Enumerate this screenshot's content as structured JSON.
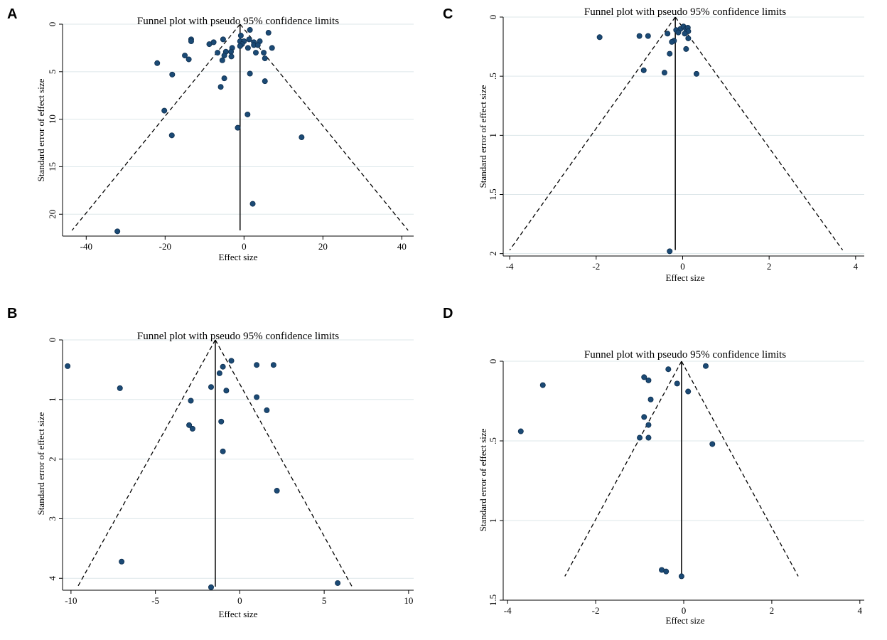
{
  "chart_data": [
    {
      "panel_label": "A",
      "type": "scatter",
      "title": "Funnel plot with pseudo 95% confidence limits",
      "xlabel": "Effect size",
      "ylabel": "Standard error of effect size",
      "xlim": [
        -46,
        43
      ],
      "ylim": [
        0,
        22.3
      ],
      "y_reversed": true,
      "xticks": [
        -40,
        -20,
        0,
        20,
        40
      ],
      "xtick_labels": [
        "-40",
        "-20",
        "0",
        "20",
        "40"
      ],
      "yticks": [
        0,
        5,
        10,
        15,
        20
      ],
      "ytick_labels": [
        "0",
        "5",
        "10",
        "15",
        "20"
      ],
      "grid": "horizontal",
      "pooled_effect": -1,
      "funnel_lines": [
        {
          "x1": -1,
          "y1": 0,
          "x2": -43.6,
          "y2": 21.7
        },
        {
          "x1": -1,
          "y1": 0,
          "x2": 41.6,
          "y2": 21.7
        }
      ],
      "points": [
        {
          "x": 1.5,
          "y": 0.6
        },
        {
          "x": 6.2,
          "y": 0.9
        },
        {
          "x": -13.4,
          "y": 1.6
        },
        {
          "x": -13.4,
          "y": 1.8
        },
        {
          "x": -8.8,
          "y": 2.1
        },
        {
          "x": -7.7,
          "y": 1.9
        },
        {
          "x": -5.3,
          "y": 1.6
        },
        {
          "x": -0.8,
          "y": 1.2
        },
        {
          "x": -1,
          "y": 1.8
        },
        {
          "x": 0,
          "y": 1.8
        },
        {
          "x": 1.3,
          "y": 1.6
        },
        {
          "x": 2.5,
          "y": 1.9
        },
        {
          "x": 4,
          "y": 1.8
        },
        {
          "x": 2.5,
          "y": 2.2
        },
        {
          "x": -0.5,
          "y": 2.1
        },
        {
          "x": -1,
          "y": 2.3
        },
        {
          "x": -3,
          "y": 2.5
        },
        {
          "x": 1,
          "y": 2.5
        },
        {
          "x": 3.5,
          "y": 2.2
        },
        {
          "x": 7.1,
          "y": 2.5
        },
        {
          "x": -3.3,
          "y": 2.9
        },
        {
          "x": -4.6,
          "y": 2.9
        },
        {
          "x": -6.7,
          "y": 3
        },
        {
          "x": 5,
          "y": 3
        },
        {
          "x": 3,
          "y": 3
        },
        {
          "x": -15,
          "y": 3.3
        },
        {
          "x": -14,
          "y": 3.7
        },
        {
          "x": -5,
          "y": 3.3
        },
        {
          "x": -3.2,
          "y": 3.4
        },
        {
          "x": -5.5,
          "y": 3.8
        },
        {
          "x": 5.3,
          "y": 3.6
        },
        {
          "x": -22,
          "y": 4.1
        },
        {
          "x": -18.2,
          "y": 5.3
        },
        {
          "x": -5,
          "y": 5.7
        },
        {
          "x": 1.5,
          "y": 5.2
        },
        {
          "x": 5.3,
          "y": 6
        },
        {
          "x": -5.9,
          "y": 6.6
        },
        {
          "x": -20.2,
          "y": 9.1
        },
        {
          "x": 0.9,
          "y": 9.5
        },
        {
          "x": -1.6,
          "y": 10.9
        },
        {
          "x": -18.3,
          "y": 11.7
        },
        {
          "x": 14.6,
          "y": 11.9
        },
        {
          "x": 2.2,
          "y": 18.9
        },
        {
          "x": -32.1,
          "y": 21.8
        }
      ]
    },
    {
      "panel_label": "B",
      "type": "scatter",
      "title": "Funnel plot with pseudo 95% confidence limits",
      "xlabel": "Effect size",
      "ylabel": "Standard error of effect size",
      "xlim": [
        -10.5,
        10.3
      ],
      "ylim": [
        0,
        4.2
      ],
      "y_reversed": true,
      "xticks": [
        -10,
        -5,
        0,
        5,
        10
      ],
      "xtick_labels": [
        "-10",
        "-5",
        "0",
        "5",
        "10"
      ],
      "yticks": [
        0,
        1,
        2,
        3,
        4
      ],
      "ytick_labels": [
        "0",
        "1",
        "2",
        "3",
        "4"
      ],
      "grid": "horizontal",
      "pooled_effect": -1.45,
      "funnel_lines": [
        {
          "x1": -1.45,
          "y1": 0,
          "x2": -9.6,
          "y2": 4.14
        },
        {
          "x1": -1.45,
          "y1": 0,
          "x2": 6.65,
          "y2": 4.14
        }
      ],
      "points": [
        {
          "x": -10.2,
          "y": 0.44
        },
        {
          "x": -7.1,
          "y": 0.81
        },
        {
          "x": -0.5,
          "y": 0.35
        },
        {
          "x": -1,
          "y": 0.45
        },
        {
          "x": -1.2,
          "y": 0.56
        },
        {
          "x": 1,
          "y": 0.42
        },
        {
          "x": 2,
          "y": 0.42
        },
        {
          "x": -1.7,
          "y": 0.79
        },
        {
          "x": -0.8,
          "y": 0.85
        },
        {
          "x": 1,
          "y": 0.96
        },
        {
          "x": -2.9,
          "y": 1.02
        },
        {
          "x": 1.6,
          "y": 1.18
        },
        {
          "x": -3,
          "y": 1.43
        },
        {
          "x": -2.8,
          "y": 1.49
        },
        {
          "x": -1.1,
          "y": 1.37
        },
        {
          "x": -1,
          "y": 1.87
        },
        {
          "x": 2.2,
          "y": 2.53
        },
        {
          "x": -7,
          "y": 3.72
        },
        {
          "x": -1.7,
          "y": 4.15
        },
        {
          "x": 5.8,
          "y": 4.08
        }
      ]
    },
    {
      "panel_label": "C",
      "type": "scatter",
      "title": "Funnel plot with pseudo 95% confidence limits",
      "xlabel": "Effect size",
      "ylabel": "Standard error of effect size",
      "xlim": [
        -4.15,
        4.2
      ],
      "ylim": [
        0,
        2.02
      ],
      "y_reversed": true,
      "xticks": [
        -4,
        -2,
        0,
        2,
        4
      ],
      "xtick_labels": [
        "-4",
        "-2",
        "0",
        "2",
        "4"
      ],
      "yticks": [
        0,
        0.5,
        1,
        1.5,
        2
      ],
      "ytick_labels": [
        "0",
        ".5",
        "1",
        "1.5",
        "2"
      ],
      "grid": "horizontal",
      "pooled_effect": -0.17,
      "funnel_lines": [
        {
          "x1": -0.17,
          "y1": 0,
          "x2": -4.0,
          "y2": 1.97
        },
        {
          "x1": -0.17,
          "y1": 0,
          "x2": 3.7,
          "y2": 1.97
        }
      ],
      "points": [
        {
          "x": -1.92,
          "y": 0.17
        },
        {
          "x": -1.0,
          "y": 0.16
        },
        {
          "x": -0.8,
          "y": 0.16
        },
        {
          "x": -0.35,
          "y": 0.14
        },
        {
          "x": -0.15,
          "y": 0.11
        },
        {
          "x": -0.05,
          "y": 0.1
        },
        {
          "x": 0.02,
          "y": 0.08
        },
        {
          "x": 0.08,
          "y": 0.1
        },
        {
          "x": 0.12,
          "y": 0.09
        },
        {
          "x": 0.13,
          "y": 0.12
        },
        {
          "x": 0.05,
          "y": 0.14
        },
        {
          "x": -0.1,
          "y": 0.13
        },
        {
          "x": -0.2,
          "y": 0.2
        },
        {
          "x": -0.25,
          "y": 0.21
        },
        {
          "x": 0.13,
          "y": 0.18
        },
        {
          "x": 0.08,
          "y": 0.27
        },
        {
          "x": -0.3,
          "y": 0.31
        },
        {
          "x": -0.9,
          "y": 0.45
        },
        {
          "x": -0.42,
          "y": 0.47
        },
        {
          "x": 0.32,
          "y": 0.48
        },
        {
          "x": -0.3,
          "y": 1.98
        }
      ]
    },
    {
      "panel_label": "D",
      "type": "scatter",
      "title": "Funnel plot with pseudo 95% confidence limits",
      "xlabel": "Effect size",
      "ylabel": "Standard error of effect size",
      "xlim": [
        -4.1,
        4.1
      ],
      "ylim": [
        0,
        1.5
      ],
      "y_reversed": true,
      "xticks": [
        -4,
        -2,
        0,
        2,
        4
      ],
      "xtick_labels": [
        "-4",
        "-2",
        "0",
        "2",
        "4"
      ],
      "yticks": [
        0,
        0.5,
        1,
        1.5
      ],
      "ytick_labels": [
        "0",
        ".5",
        "1",
        "1.5"
      ],
      "grid": "horizontal",
      "pooled_effect": -0.05,
      "funnel_lines": [
        {
          "x1": -0.05,
          "y1": 0,
          "x2": -2.7,
          "y2": 1.35
        },
        {
          "x1": -0.05,
          "y1": 0,
          "x2": 2.6,
          "y2": 1.35
        }
      ],
      "points": [
        {
          "x": -0.35,
          "y": 0.05
        },
        {
          "x": 0.5,
          "y": 0.03
        },
        {
          "x": -3.2,
          "y": 0.15
        },
        {
          "x": -0.9,
          "y": 0.1
        },
        {
          "x": -0.8,
          "y": 0.12
        },
        {
          "x": -0.15,
          "y": 0.14
        },
        {
          "x": 0.1,
          "y": 0.19
        },
        {
          "x": -0.75,
          "y": 0.24
        },
        {
          "x": -0.9,
          "y": 0.35
        },
        {
          "x": -0.8,
          "y": 0.4
        },
        {
          "x": -1.0,
          "y": 0.48
        },
        {
          "x": -0.8,
          "y": 0.48
        },
        {
          "x": -3.7,
          "y": 0.44
        },
        {
          "x": 0.65,
          "y": 0.52
        },
        {
          "x": -0.5,
          "y": 1.31
        },
        {
          "x": -0.4,
          "y": 1.32
        },
        {
          "x": -0.05,
          "y": 1.35
        }
      ]
    }
  ]
}
